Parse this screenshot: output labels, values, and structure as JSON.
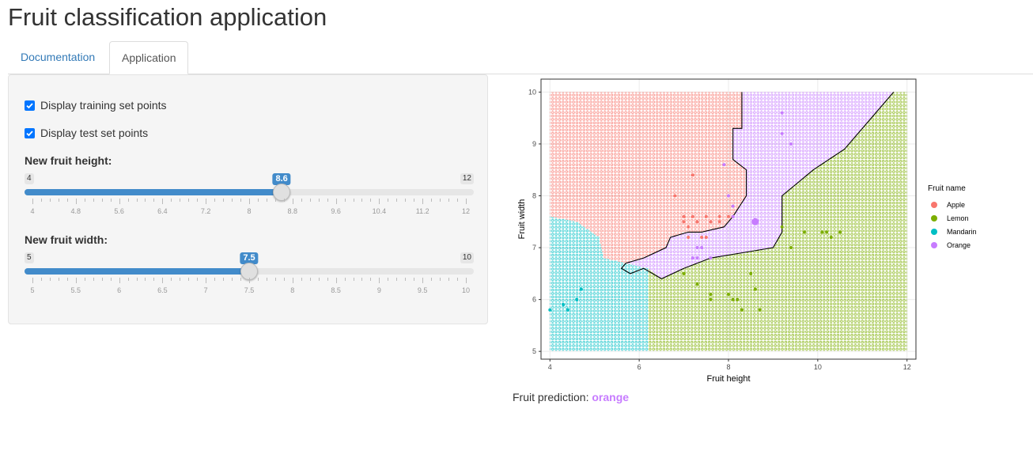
{
  "app": {
    "title": "Fruit classification application"
  },
  "tabs": [
    {
      "label": "Documentation",
      "active": false
    },
    {
      "label": "Application",
      "active": true
    }
  ],
  "controls": {
    "show_training": {
      "label": "Display training set points",
      "checked": true
    },
    "show_test": {
      "label": "Display test set points",
      "checked": true
    },
    "height_slider": {
      "label": "New fruit height:",
      "min": 4,
      "max": 12,
      "value": 8.6,
      "min_label": "4",
      "max_label": "12",
      "value_label": "8.6",
      "grid_labels": [
        "4",
        "4.8",
        "5.6",
        "6.4",
        "7.2",
        "8",
        "8.8",
        "9.6",
        "10.4",
        "11.2",
        "12"
      ]
    },
    "width_slider": {
      "label": "New fruit width:",
      "min": 5,
      "max": 10,
      "value": 7.5,
      "min_label": "5",
      "max_label": "10",
      "value_label": "7.5",
      "grid_labels": [
        "5",
        "5.5",
        "6",
        "6.5",
        "7",
        "7.5",
        "8",
        "8.5",
        "9",
        "9.5",
        "10"
      ]
    }
  },
  "prediction": {
    "label": "Fruit prediction:",
    "value": "orange"
  },
  "colors": {
    "accent": "#428bca",
    "apple": "#f8766d",
    "lemon": "#7cae00",
    "mandarin": "#00bfc4",
    "orange": "#c77cff"
  },
  "chart_data": {
    "type": "scatter",
    "xlabel": "Fruit height",
    "ylabel": "Fruit width",
    "xlim": [
      3.8,
      12.2
    ],
    "ylim": [
      4.85,
      10.25
    ],
    "x_ticks": [
      4,
      6,
      8,
      10,
      12
    ],
    "y_ticks": [
      5,
      6,
      7,
      8,
      9,
      10
    ],
    "grid": true,
    "legend": {
      "title": "Fruit name",
      "position": "right",
      "entries": [
        "Apple",
        "Lemon",
        "Mandarin",
        "Orange"
      ]
    },
    "decision_regions": [
      {
        "name": "Apple",
        "polygon": [
          [
            4,
            10
          ],
          [
            8.3,
            10
          ],
          [
            8.3,
            9.3
          ],
          [
            8.1,
            9.3
          ],
          [
            8.1,
            8.7
          ],
          [
            8.4,
            8.5
          ],
          [
            8.4,
            8.0
          ],
          [
            8.1,
            7.6
          ],
          [
            7.9,
            7.4
          ],
          [
            7.4,
            7.3
          ],
          [
            7.1,
            7.3
          ],
          [
            6.7,
            7.2
          ],
          [
            6.6,
            7.0
          ],
          [
            6.1,
            6.8
          ],
          [
            5.7,
            6.7
          ],
          [
            5.2,
            6.8
          ],
          [
            5.1,
            7.2
          ],
          [
            4.6,
            7.5
          ],
          [
            4,
            7.6
          ]
        ]
      },
      {
        "name": "Mandarin",
        "polygon": [
          [
            4,
            7.6
          ],
          [
            4.6,
            7.5
          ],
          [
            5.1,
            7.2
          ],
          [
            5.2,
            6.8
          ],
          [
            5.7,
            6.7
          ],
          [
            6.2,
            6.6
          ],
          [
            6.2,
            5
          ],
          [
            4,
            5
          ]
        ]
      },
      {
        "name": "Orange",
        "polygon": [
          [
            8.3,
            10
          ],
          [
            11.7,
            10
          ],
          [
            11.3,
            9.6
          ],
          [
            10.6,
            8.9
          ],
          [
            9.9,
            8.5
          ],
          [
            9.2,
            8.0
          ],
          [
            9.2,
            7.3
          ],
          [
            9.0,
            7.0
          ],
          [
            8.3,
            6.9
          ],
          [
            7.6,
            6.8
          ],
          [
            7.0,
            6.6
          ],
          [
            6.5,
            6.4
          ],
          [
            6.2,
            6.6
          ],
          [
            5.7,
            6.7
          ],
          [
            6.1,
            6.8
          ],
          [
            6.6,
            7.0
          ],
          [
            6.7,
            7.2
          ],
          [
            7.1,
            7.3
          ],
          [
            7.4,
            7.3
          ],
          [
            7.9,
            7.4
          ],
          [
            8.1,
            7.6
          ],
          [
            8.4,
            8.0
          ],
          [
            8.4,
            8.5
          ],
          [
            8.1,
            8.7
          ],
          [
            8.1,
            9.3
          ],
          [
            8.3,
            9.3
          ]
        ]
      },
      {
        "name": "Lemon",
        "polygon": [
          [
            11.7,
            10
          ],
          [
            12,
            10
          ],
          [
            12,
            5
          ],
          [
            6.2,
            5
          ],
          [
            6.2,
            6.6
          ],
          [
            6.5,
            6.4
          ],
          [
            7.0,
            6.6
          ],
          [
            7.6,
            6.8
          ],
          [
            8.3,
            6.9
          ],
          [
            9.0,
            7.0
          ],
          [
            9.2,
            7.3
          ],
          [
            9.2,
            8.0
          ],
          [
            9.9,
            8.5
          ],
          [
            10.6,
            8.9
          ],
          [
            11.3,
            9.6
          ]
        ]
      }
    ],
    "boundary": [
      [
        8.3,
        10
      ],
      [
        8.3,
        9.3
      ],
      [
        8.1,
        9.3
      ],
      [
        8.1,
        8.7
      ],
      [
        8.4,
        8.5
      ],
      [
        8.4,
        8.0
      ],
      [
        8.1,
        7.6
      ],
      [
        7.9,
        7.4
      ],
      [
        7.4,
        7.3
      ],
      [
        7.1,
        7.3
      ],
      [
        6.7,
        7.2
      ],
      [
        6.6,
        7.0
      ],
      [
        6.1,
        6.8
      ],
      [
        5.7,
        6.7
      ],
      [
        5.6,
        6.6
      ],
      [
        5.8,
        6.5
      ],
      [
        6.1,
        6.6
      ],
      [
        6.5,
        6.4
      ],
      [
        7.0,
        6.6
      ],
      [
        7.6,
        6.8
      ],
      [
        8.3,
        6.9
      ],
      [
        9.0,
        7.0
      ],
      [
        9.2,
        7.3
      ],
      [
        9.2,
        8.0
      ],
      [
        9.9,
        8.5
      ],
      [
        10.6,
        8.9
      ],
      [
        11.3,
        9.6
      ],
      [
        11.7,
        10
      ]
    ],
    "training_points": [
      {
        "name": "Apple",
        "points": [
          [
            6.8,
            8.0
          ],
          [
            7.2,
            8.4
          ],
          [
            7.0,
            7.6
          ],
          [
            7.2,
            7.6
          ],
          [
            7.3,
            7.5
          ],
          [
            7.5,
            7.6
          ],
          [
            7.6,
            7.5
          ],
          [
            7.8,
            7.5
          ],
          [
            8.0,
            7.6
          ],
          [
            7.0,
            7.5
          ],
          [
            7.1,
            7.4
          ],
          [
            7.5,
            7.2
          ],
          [
            7.4,
            7.2
          ],
          [
            7.1,
            7.2
          ],
          [
            7.8,
            7.6
          ]
        ]
      },
      {
        "name": "Lemon",
        "points": [
          [
            7.0,
            6.5
          ],
          [
            7.3,
            6.3
          ],
          [
            7.6,
            6.0
          ],
          [
            7.6,
            6.1
          ],
          [
            8.0,
            6.1
          ],
          [
            8.1,
            6.0
          ],
          [
            8.2,
            6.0
          ],
          [
            8.5,
            6.5
          ],
          [
            8.6,
            6.2
          ],
          [
            8.3,
            5.8
          ],
          [
            8.7,
            5.8
          ],
          [
            9.7,
            7.3
          ],
          [
            10.1,
            7.3
          ],
          [
            10.2,
            7.3
          ],
          [
            10.3,
            7.2
          ],
          [
            10.5,
            7.3
          ],
          [
            9.4,
            7.0
          ],
          [
            9.2,
            7.4
          ]
        ]
      },
      {
        "name": "Mandarin",
        "points": [
          [
            4.0,
            5.8
          ],
          [
            4.3,
            5.9
          ],
          [
            4.4,
            5.8
          ],
          [
            4.6,
            6.0
          ],
          [
            4.7,
            6.2
          ]
        ]
      },
      {
        "name": "Orange",
        "points": [
          [
            7.9,
            8.6
          ],
          [
            8.0,
            8.0
          ],
          [
            8.1,
            7.8
          ],
          [
            9.2,
            9.6
          ],
          [
            9.2,
            9.2
          ],
          [
            9.4,
            9.0
          ],
          [
            8.1,
            7.6
          ],
          [
            7.3,
            7.0
          ],
          [
            7.2,
            6.8
          ],
          [
            7.3,
            6.8
          ],
          [
            7.6,
            6.8
          ],
          [
            7.4,
            7.0
          ]
        ]
      }
    ],
    "new_point": {
      "x": 8.6,
      "y": 7.5,
      "name": "Orange"
    }
  }
}
